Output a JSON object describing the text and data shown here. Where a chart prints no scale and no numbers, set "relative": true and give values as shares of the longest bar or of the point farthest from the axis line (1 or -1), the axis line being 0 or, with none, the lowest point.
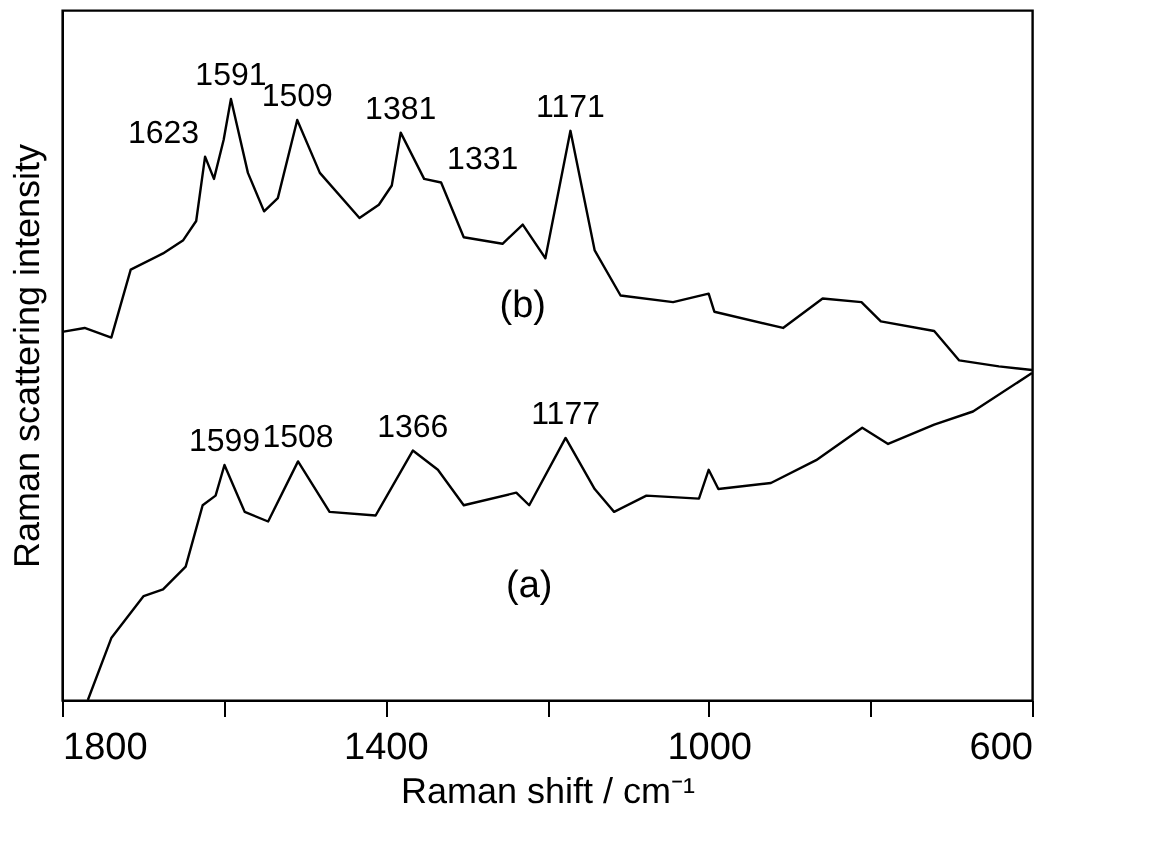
{
  "chart_data": {
    "type": "line",
    "relative": true,
    "xlabel": "Raman shift / cm⁻¹",
    "ylabel": "Raman scattering intensity",
    "xlim": [
      1800,
      600
    ],
    "xticks": [
      1800,
      {
        "value": 1600,
        "label": null
      },
      1400,
      {
        "value": 1200,
        "label": null
      },
      1000,
      {
        "value": 800,
        "label": null
      },
      600
    ],
    "grid": false,
    "legend": false,
    "marker": "none",
    "line_style": "solid",
    "tick_labels": "x",
    "series": [
      {
        "name": "(b)",
        "color": "#000000",
        "x": [
          1798,
          1772,
          1739,
          1715,
          1675,
          1650,
          1634,
          1623,
          1612,
          1600,
          1591,
          1570,
          1550,
          1533,
          1509,
          1481,
          1432,
          1408,
          1392,
          1381,
          1352,
          1331,
          1303,
          1255,
          1230,
          1202,
          1171,
          1141,
          1109,
          1044,
          1000,
          993,
          908,
          859,
          811,
          787,
          721,
          690,
          641,
          600
        ],
        "values": [
          0.613,
          0.619,
          0.603,
          0.716,
          0.743,
          0.765,
          0.797,
          0.904,
          0.867,
          0.932,
          1.0,
          0.877,
          0.813,
          0.835,
          0.965,
          0.877,
          0.802,
          0.824,
          0.856,
          0.944,
          0.867,
          0.861,
          0.77,
          0.759,
          0.791,
          0.735,
          0.947,
          0.748,
          0.673,
          0.662,
          0.676,
          0.646,
          0.619,
          0.668,
          0.662,
          0.63,
          0.614,
          0.565,
          0.555,
          0.549
        ]
      },
      {
        "name": "(a)",
        "color": "#000000",
        "x": [
          1768,
          1739,
          1699,
          1675,
          1647,
          1626,
          1610,
          1599,
          1574,
          1545,
          1508,
          1469,
          1412,
          1366,
          1335,
          1303,
          1238,
          1222,
          1177,
          1141,
          1117,
          1077,
          1012,
          1000,
          988,
          923,
          867,
          810,
          778,
          721,
          673,
          600
        ],
        "values": [
          0.0,
          0.103,
          0.173,
          0.184,
          0.222,
          0.324,
          0.34,
          0.391,
          0.313,
          0.297,
          0.397,
          0.313,
          0.307,
          0.415,
          0.383,
          0.324,
          0.345,
          0.324,
          0.436,
          0.351,
          0.313,
          0.34,
          0.335,
          0.383,
          0.351,
          0.361,
          0.399,
          0.453,
          0.426,
          0.458,
          0.48,
          0.544
        ]
      }
    ],
    "annotations": [
      {
        "text": "1623",
        "x": 1623,
        "y": 0.904
      },
      {
        "text": "1591",
        "x": 1591,
        "y": 1.0
      },
      {
        "text": "1509",
        "x": 1509,
        "y": 0.965
      },
      {
        "text": "1381",
        "x": 1381,
        "y": 0.944
      },
      {
        "text": "1331",
        "x": 1331,
        "y": 0.861
      },
      {
        "text": "1171",
        "x": 1171,
        "y": 0.947
      },
      {
        "text": "1599",
        "x": 1599,
        "y": 0.391
      },
      {
        "text": "1508",
        "x": 1508,
        "y": 0.397
      },
      {
        "text": "1366",
        "x": 1366,
        "y": 0.415
      },
      {
        "text": "1177",
        "x": 1177,
        "y": 0.436
      }
    ]
  }
}
